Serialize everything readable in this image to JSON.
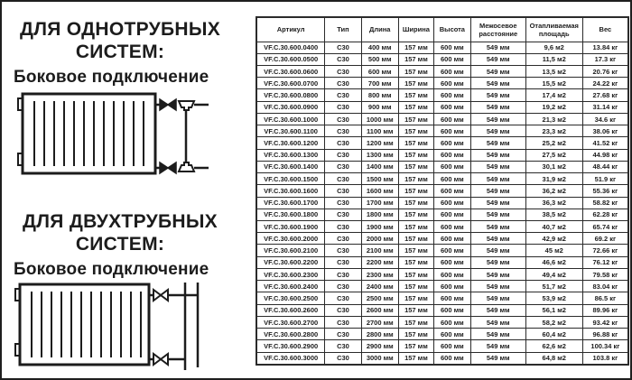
{
  "left_panel": {
    "one_pipe": {
      "title_line1": "ДЛЯ ОДНОТРУБНЫХ",
      "title_line2": "СИСТЕМ:",
      "subtitle": "Боковое подключение"
    },
    "two_pipe": {
      "title_line1": "ДЛЯ ДВУХТРУБНЫХ",
      "title_line2": "СИСТЕМ:",
      "subtitle": "Боковое подключение"
    }
  },
  "table": {
    "headers": [
      "Артикул",
      "Тип",
      "Длина",
      "Ширина",
      "Высота",
      "Межосевое расстояние",
      "Отапливаемая площадь",
      "Вес"
    ],
    "rows": [
      [
        "VF.C.30.600.0400",
        "C30",
        "400 мм",
        "157 мм",
        "600 мм",
        "549 мм",
        "9,6 м2",
        "13.84 кг"
      ],
      [
        "VF.C.30.600.0500",
        "C30",
        "500 мм",
        "157 мм",
        "600 мм",
        "549 мм",
        "11,5 м2",
        "17.3 кг"
      ],
      [
        "VF.C.30.600.0600",
        "C30",
        "600 мм",
        "157 мм",
        "600 мм",
        "549 мм",
        "13,5 м2",
        "20.76 кг"
      ],
      [
        "VF.C.30.600.0700",
        "C30",
        "700 мм",
        "157 мм",
        "600 мм",
        "549 мм",
        "15,5 м2",
        "24.22 кг"
      ],
      [
        "VF.C.30.600.0800",
        "C30",
        "800 мм",
        "157 мм",
        "600 мм",
        "549 мм",
        "17,4 м2",
        "27.68 кг"
      ],
      [
        "VF.C.30.600.0900",
        "C30",
        "900 мм",
        "157 мм",
        "600 мм",
        "549 мм",
        "19,2 м2",
        "31.14 кг"
      ],
      [
        "VF.C.30.600.1000",
        "C30",
        "1000 мм",
        "157 мм",
        "600 мм",
        "549 мм",
        "21,3 м2",
        "34.6 кг"
      ],
      [
        "VF.C.30.600.1100",
        "C30",
        "1100 мм",
        "157 мм",
        "600 мм",
        "549 мм",
        "23,3 м2",
        "38.06 кг"
      ],
      [
        "VF.C.30.600.1200",
        "C30",
        "1200 мм",
        "157 мм",
        "600 мм",
        "549 мм",
        "25,2 м2",
        "41.52 кг"
      ],
      [
        "VF.C.30.600.1300",
        "C30",
        "1300 мм",
        "157 мм",
        "600 мм",
        "549 мм",
        "27,5 м2",
        "44.98 кг"
      ],
      [
        "VF.C.30.600.1400",
        "C30",
        "1400 мм",
        "157 мм",
        "600 мм",
        "549 мм",
        "30,1 м2",
        "48.44 кг"
      ],
      [
        "VF.C.30.600.1500",
        "C30",
        "1500 мм",
        "157 мм",
        "600 мм",
        "549 мм",
        "31,9 м2",
        "51.9 кг"
      ],
      [
        "VF.C.30.600.1600",
        "C30",
        "1600 мм",
        "157 мм",
        "600 мм",
        "549 мм",
        "36,2 м2",
        "55.36 кг"
      ],
      [
        "VF.C.30.600.1700",
        "C30",
        "1700 мм",
        "157 мм",
        "600 мм",
        "549 мм",
        "36,3 м2",
        "58.82 кг"
      ],
      [
        "VF.C.30.600.1800",
        "C30",
        "1800 мм",
        "157 мм",
        "600 мм",
        "549 мм",
        "38,5 м2",
        "62.28 кг"
      ],
      [
        "VF.C.30.600.1900",
        "C30",
        "1900 мм",
        "157 мм",
        "600 мм",
        "549 мм",
        "40,7 м2",
        "65.74 кг"
      ],
      [
        "VF.C.30.600.2000",
        "C30",
        "2000 мм",
        "157 мм",
        "600 мм",
        "549 мм",
        "42,9 м2",
        "69.2 кг"
      ],
      [
        "VF.C.30.600.2100",
        "C30",
        "2100 мм",
        "157 мм",
        "600 мм",
        "549 мм",
        "45 м2",
        "72.66 кг"
      ],
      [
        "VF.C.30.600.2200",
        "C30",
        "2200 мм",
        "157 мм",
        "600 мм",
        "549 мм",
        "46,6 м2",
        "76.12 кг"
      ],
      [
        "VF.C.30.600.2300",
        "C30",
        "2300 мм",
        "157 мм",
        "600 мм",
        "549 мм",
        "49,4 м2",
        "79.58 кг"
      ],
      [
        "VF.C.30.600.2400",
        "C30",
        "2400 мм",
        "157 мм",
        "600 мм",
        "549 мм",
        "51,7 м2",
        "83.04 кг"
      ],
      [
        "VF.C.30.600.2500",
        "C30",
        "2500 мм",
        "157 мм",
        "600 мм",
        "549 мм",
        "53,9 м2",
        "86.5 кг"
      ],
      [
        "VF.C.30.600.2600",
        "C30",
        "2600 мм",
        "157 мм",
        "600 мм",
        "549 мм",
        "56,1 м2",
        "89.96 кг"
      ],
      [
        "VF.C.30.600.2700",
        "C30",
        "2700 мм",
        "157 мм",
        "600 мм",
        "549 мм",
        "58,2 м2",
        "93.42 кг"
      ],
      [
        "VF.C.30.600.2800",
        "C30",
        "2800 мм",
        "157 мм",
        "600 мм",
        "549 мм",
        "60,4 м2",
        "96.88 кг"
      ],
      [
        "VF.C.30.600.2900",
        "C30",
        "2900 мм",
        "157 мм",
        "600 мм",
        "549 мм",
        "62,6 м2",
        "100.34 кг"
      ],
      [
        "VF.C.30.600.3000",
        "C30",
        "3000 мм",
        "157 мм",
        "600 мм",
        "549 мм",
        "64,8 м2",
        "103.8 кг"
      ]
    ]
  }
}
